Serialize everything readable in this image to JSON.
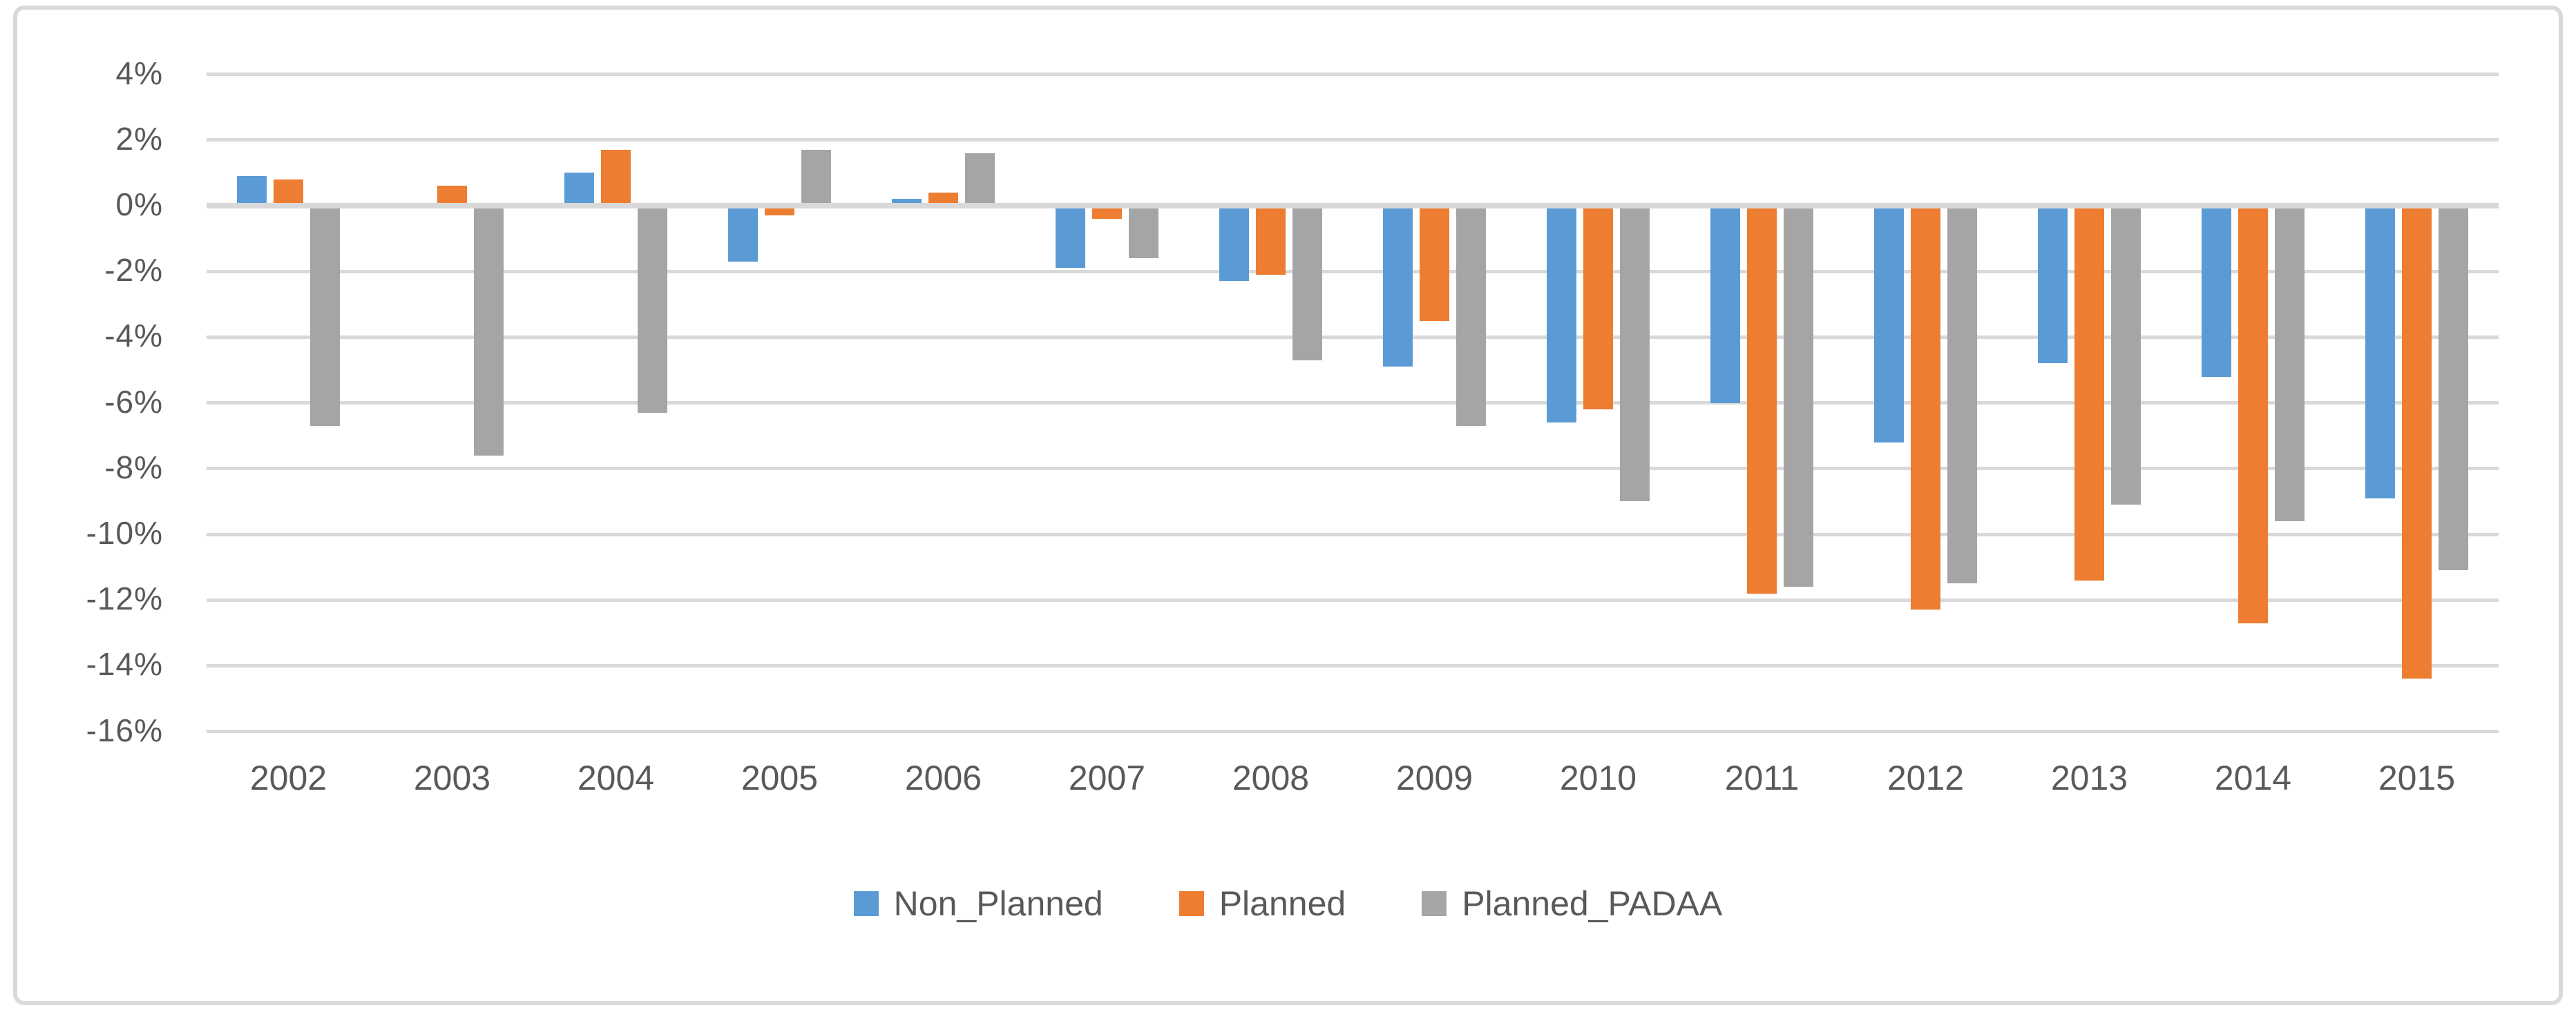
{
  "chart": {
    "background": "#FFFFFF",
    "border_color": "#D9D9D9",
    "gridline_color": "#D9D9D9",
    "text_color": "#595959"
  },
  "chart_data": {
    "type": "bar",
    "title": "",
    "xlabel": "",
    "ylabel": "",
    "categories": [
      "2002",
      "2003",
      "2004",
      "2005",
      "2006",
      "2007",
      "2008",
      "2009",
      "2010",
      "2011",
      "2012",
      "2013",
      "2014",
      "2015"
    ],
    "series": [
      {
        "name": "Non_Planned",
        "color": "#5B9BD5",
        "values": [
          0.9,
          0.0,
          1.0,
          -1.7,
          0.2,
          -1.9,
          -2.3,
          -4.9,
          -6.6,
          -6.0,
          -7.2,
          -4.8,
          -5.2,
          -8.9
        ]
      },
      {
        "name": "Planned",
        "color": "#ED7D31",
        "values": [
          0.8,
          0.6,
          1.7,
          -0.3,
          0.4,
          -0.4,
          -2.1,
          -3.5,
          -6.2,
          -11.8,
          -12.3,
          -11.4,
          -12.7,
          -14.4
        ]
      },
      {
        "name": "Planned_PADAA",
        "color": "#A5A5A5",
        "values": [
          -6.7,
          -7.6,
          -6.3,
          1.7,
          1.6,
          -1.6,
          -4.7,
          -6.7,
          -9.0,
          -11.6,
          -11.5,
          -9.1,
          -9.6,
          -11.1
        ]
      }
    ],
    "y_axis": {
      "min": -16,
      "max": 4,
      "step": 2,
      "format": "percent",
      "tick_labels": [
        "4%",
        "2%",
        "0%",
        "-2%",
        "-4%",
        "-6%",
        "-8%",
        "-10%",
        "-12%",
        "-14%",
        "-16%"
      ]
    },
    "legend": {
      "position": "bottom",
      "entries": [
        "Non_Planned",
        "Planned",
        "Planned_PADAA"
      ]
    },
    "grid": true
  }
}
